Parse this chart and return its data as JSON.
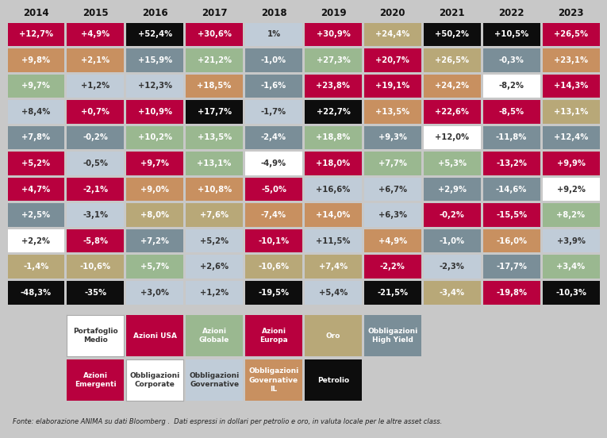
{
  "years": [
    "2014",
    "2015",
    "2016",
    "2017",
    "2018",
    "2019",
    "2020",
    "2021",
    "2022",
    "2023"
  ],
  "background_color": "#c8c8c8",
  "footer": "Fonte: elaborazione ANIMA su dati Bloomberg .  Dati espressi in dollari per petrolio e oro, in valuta locale per le altre asset class.",
  "table": [
    [
      "+12,7%",
      "+4,9%",
      "+52,4%",
      "+30,6%",
      "1%",
      "+30,9%",
      "+24,4%",
      "+50,2%",
      "+10,5%",
      "+26,5%"
    ],
    [
      "+9,8%",
      "+2,1%",
      "+15,9%",
      "+21,2%",
      "-1,0%",
      "+27,3%",
      "+20,7%",
      "+26,5%",
      "-0,3%",
      "+23,1%"
    ],
    [
      "+9,7%",
      "+1,2%",
      "+12,3%",
      "+18,5%",
      "-1,6%",
      "+23,8%",
      "+19,1%",
      "+24,2%",
      "-8,2%",
      "+14,3%"
    ],
    [
      "+8,4%",
      "+0,7%",
      "+10,9%",
      "+17,7%",
      "-1,7%",
      "+22,7%",
      "+13,5%",
      "+22,6%",
      "-8,5%",
      "+13,1%"
    ],
    [
      "+7,8%",
      "-0,2%",
      "+10,2%",
      "+13,5%",
      "-2,4%",
      "+18,8%",
      "+9,3%",
      "+12,0%",
      "-11,8%",
      "+12,4%"
    ],
    [
      "+5,2%",
      "-0,5%",
      "+9,7%",
      "+13,1%",
      "-4,9%",
      "+18,0%",
      "+7,7%",
      "+5,3%",
      "-13,2%",
      "+9,9%"
    ],
    [
      "+4,7%",
      "-2,1%",
      "+9,0%",
      "+10,8%",
      "-5,0%",
      "+16,6%",
      "+6,7%",
      "+2,9%",
      "-14,6%",
      "+9,2%"
    ],
    [
      "+2,5%",
      "-3,1%",
      "+8,0%",
      "+7,6%",
      "-7,4%",
      "+14,0%",
      "+6,3%",
      "-0,2%",
      "-15,5%",
      "+8,2%"
    ],
    [
      "+2,2%",
      "-5,8%",
      "+7,2%",
      "+5,2%",
      "-10,1%",
      "+11,5%",
      "+4,9%",
      "-1,0%",
      "-16,0%",
      "+3,9%"
    ],
    [
      "-1,4%",
      "-10,6%",
      "+5,7%",
      "+2,6%",
      "-10,6%",
      "+7,4%",
      "-2,2%",
      "-2,3%",
      "-17,7%",
      "+3,4%"
    ],
    [
      "-48,3%",
      "-35%",
      "+3,0%",
      "+1,2%",
      "-19,5%",
      "+5,4%",
      "-21,5%",
      "-3,4%",
      "-19,8%",
      "-10,3%"
    ]
  ],
  "colors": [
    [
      "#b8003e",
      "#b8003e",
      "#0d0d0d",
      "#b8003e",
      "#c0ccd8",
      "#b8003e",
      "#b8a878",
      "#0d0d0d",
      "#0d0d0d",
      "#b8003e"
    ],
    [
      "#c89060",
      "#c89060",
      "#7a8e98",
      "#9ab890",
      "#7a8e98",
      "#9ab890",
      "#b8003e",
      "#b8a878",
      "#7a8e98",
      "#c89060"
    ],
    [
      "#9ab890",
      "#c0ccd8",
      "#c0ccd8",
      "#c89060",
      "#7a8e98",
      "#b8003e",
      "#b8003e",
      "#c89060",
      "#ffffff",
      "#b8003e"
    ],
    [
      "#c0ccd8",
      "#b8003e",
      "#b8003e",
      "#0d0d0d",
      "#c0ccd8",
      "#0d0d0d",
      "#c89060",
      "#b8003e",
      "#b8003e",
      "#b8a878"
    ],
    [
      "#7a8e98",
      "#7a8e98",
      "#9ab890",
      "#9ab890",
      "#7a8e98",
      "#9ab890",
      "#7a8e98",
      "#ffffff",
      "#7a8e98",
      "#7a8e98"
    ],
    [
      "#b8003e",
      "#c0ccd8",
      "#b8003e",
      "#9ab890",
      "#ffffff",
      "#b8003e",
      "#9ab890",
      "#9ab890",
      "#b8003e",
      "#b8003e"
    ],
    [
      "#b8003e",
      "#b8003e",
      "#c89060",
      "#c89060",
      "#b8003e",
      "#c0ccd8",
      "#c0ccd8",
      "#7a8e98",
      "#7a8e98",
      "#ffffff"
    ],
    [
      "#7a8e98",
      "#c0ccd8",
      "#b8a878",
      "#b8a878",
      "#c89060",
      "#c89060",
      "#c0ccd8",
      "#b8003e",
      "#b8003e",
      "#9ab890"
    ],
    [
      "#ffffff",
      "#b8003e",
      "#7a8e98",
      "#c0ccd8",
      "#b8003e",
      "#c0ccd8",
      "#c89060",
      "#7a8e98",
      "#c89060",
      "#c0ccd8"
    ],
    [
      "#b8a878",
      "#b8a878",
      "#9ab890",
      "#c0ccd8",
      "#b8a878",
      "#b8a878",
      "#b8003e",
      "#c0ccd8",
      "#7a8e98",
      "#9ab890"
    ],
    [
      "#0d0d0d",
      "#0d0d0d",
      "#c0ccd8",
      "#c0ccd8",
      "#0d0d0d",
      "#c0ccd8",
      "#0d0d0d",
      "#b8a878",
      "#b8003e",
      "#0d0d0d"
    ]
  ],
  "legend_row1": [
    {
      "label": "Portafoglio\nMedio",
      "color": "#ffffff",
      "text_color": "#333333",
      "border": true
    },
    {
      "label": "Azioni USA",
      "color": "#b8003e",
      "text_color": "#ffffff",
      "border": false
    },
    {
      "label": "Azioni\nGlobale",
      "color": "#9ab890",
      "text_color": "#ffffff",
      "border": false
    },
    {
      "label": "Azioni\nEuropa",
      "color": "#b8003e",
      "text_color": "#ffffff",
      "border": false
    },
    {
      "label": "Oro",
      "color": "#b8a878",
      "text_color": "#ffffff",
      "border": false
    },
    {
      "label": "Obbligazioni\nHigh Yield",
      "color": "#7a8e98",
      "text_color": "#ffffff",
      "border": false
    }
  ],
  "legend_row2": [
    {
      "label": "Azioni\nEmergenti",
      "color": "#b8003e",
      "text_color": "#ffffff",
      "border": false
    },
    {
      "label": "Obbligazioni\nCorporate",
      "color": "#ffffff",
      "text_color": "#333333",
      "border": true
    },
    {
      "label": "Obbligazioni\nGovernative",
      "color": "#c0ccd8",
      "text_color": "#333333",
      "border": false
    },
    {
      "label": "Obbligazioni\nGovernative\nIL",
      "color": "#c89060",
      "text_color": "#ffffff",
      "border": false
    },
    {
      "label": "Petrolio",
      "color": "#0d0d0d",
      "text_color": "#ffffff",
      "border": false
    }
  ]
}
